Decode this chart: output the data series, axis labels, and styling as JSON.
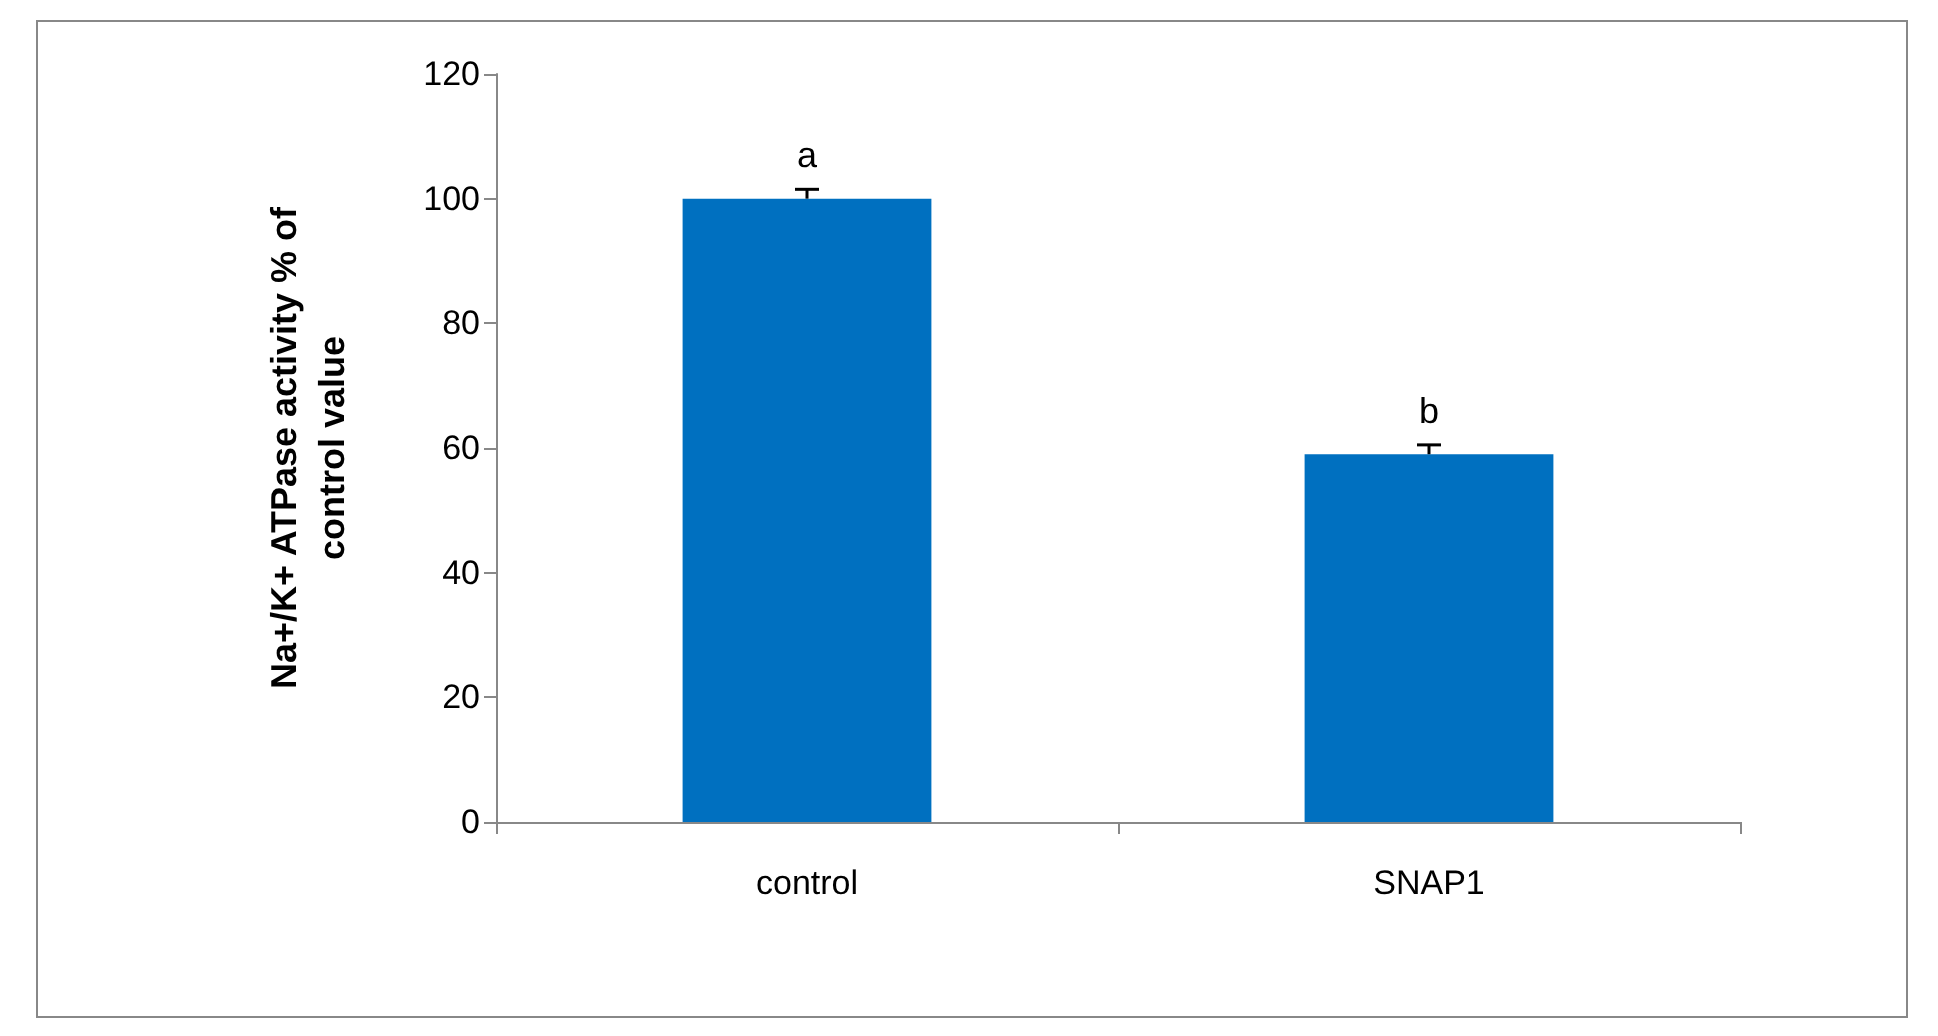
{
  "chart_data": {
    "type": "bar",
    "ylabel": "Na+/K+ ATPase activity % of control value",
    "categories": [
      "control",
      "SNAP1"
    ],
    "values": [
      100,
      59
    ],
    "color": "#0070c0",
    "errors": [
      [
        100,
        101.5
      ],
      [
        59,
        60.5
      ]
    ],
    "ylim": [
      0,
      120
    ],
    "yticks": [
      0,
      20,
      40,
      60,
      80,
      100,
      120
    ],
    "annotations": [
      {
        "text": "a",
        "x": "control",
        "y": 101.5
      },
      {
        "text": "b",
        "x": "SNAP1",
        "y": 60.5
      }
    ],
    "grid": false
  }
}
